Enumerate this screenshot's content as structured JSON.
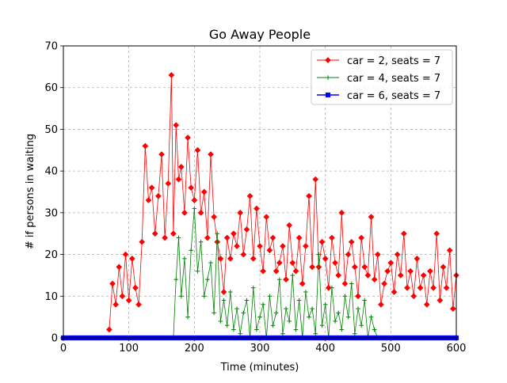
{
  "chart_data": {
    "type": "line",
    "title": "Go Away People",
    "xlabel": "Time (minutes)",
    "ylabel": "# if persons in waiting",
    "xlim": [
      0,
      600
    ],
    "ylim": [
      0,
      70
    ],
    "xticks": [
      0,
      100,
      200,
      300,
      400,
      500,
      600
    ],
    "yticks": [
      0,
      10,
      20,
      30,
      40,
      50,
      60,
      70
    ],
    "grid": true,
    "legend_position": "top-right",
    "series": [
      {
        "name": "car = 2, seats = 7",
        "color": "#ff0000",
        "marker": "diamond",
        "x": [
          70,
          75,
          80,
          85,
          90,
          95,
          100,
          105,
          110,
          115,
          120,
          125,
          130,
          135,
          140,
          145,
          150,
          155,
          160,
          165,
          168,
          172,
          176,
          180,
          185,
          190,
          195,
          200,
          205,
          210,
          215,
          220,
          225,
          230,
          235,
          240,
          245,
          250,
          255,
          260,
          265,
          270,
          275,
          280,
          285,
          290,
          295,
          300,
          305,
          310,
          315,
          320,
          325,
          330,
          335,
          340,
          345,
          350,
          355,
          360,
          365,
          370,
          375,
          380,
          385,
          390,
          395,
          400,
          405,
          410,
          415,
          420,
          425,
          430,
          435,
          440,
          445,
          450,
          455,
          460,
          465,
          470,
          475,
          480,
          485,
          490,
          495,
          500,
          505,
          510,
          515,
          520,
          525,
          530,
          535,
          540,
          545,
          550,
          555,
          560,
          565,
          570,
          575,
          580,
          585,
          590,
          595,
          600
        ],
        "values": [
          2,
          13,
          8,
          17,
          10,
          20,
          9,
          19,
          12,
          8,
          23,
          46,
          33,
          36,
          25,
          34,
          44,
          24,
          37,
          63,
          25,
          51,
          38,
          41,
          30,
          48,
          36,
          33,
          45,
          30,
          35,
          24,
          44,
          29,
          23,
          19,
          11,
          24,
          19,
          25,
          22,
          30,
          20,
          26,
          34,
          19,
          31,
          22,
          16,
          29,
          21,
          24,
          16,
          18,
          22,
          14,
          27,
          18,
          16,
          24,
          13,
          22,
          34,
          17,
          38,
          17,
          23,
          19,
          12,
          24,
          18,
          15,
          30,
          13,
          20,
          23,
          17,
          10,
          24,
          17,
          15,
          29,
          14,
          20,
          8,
          13,
          16,
          18,
          11,
          20,
          15,
          25,
          12,
          16,
          10,
          19,
          12,
          15,
          8,
          16,
          12,
          25,
          9,
          17,
          12,
          21,
          7,
          15
        ]
      },
      {
        "name": "car = 4, seats = 7",
        "color": "#008000",
        "marker": "plus",
        "x": [
          168,
          172,
          176,
          180,
          185,
          190,
          195,
          200,
          205,
          210,
          215,
          220,
          225,
          230,
          235,
          240,
          245,
          250,
          255,
          260,
          265,
          270,
          275,
          280,
          285,
          290,
          295,
          300,
          305,
          310,
          315,
          320,
          325,
          330,
          335,
          340,
          345,
          350,
          355,
          360,
          365,
          370,
          375,
          380,
          385,
          390,
          395,
          400,
          405,
          410,
          415,
          420,
          425,
          430,
          435,
          440,
          445,
          450,
          455,
          460,
          465,
          470,
          475,
          480
        ],
        "values": [
          0,
          14,
          24,
          10,
          19,
          5,
          21,
          31,
          16,
          23,
          10,
          14,
          18,
          6,
          25,
          4,
          9,
          3,
          11,
          2,
          7,
          1,
          6,
          9,
          0,
          12,
          2,
          5,
          8,
          0,
          10,
          3,
          6,
          14,
          1,
          7,
          4,
          15,
          2,
          9,
          0,
          11,
          5,
          7,
          1,
          20,
          3,
          8,
          0,
          12,
          4,
          6,
          2,
          10,
          5,
          13,
          1,
          7,
          3,
          9,
          0,
          5,
          2,
          0
        ]
      },
      {
        "name": "car = 6, seats = 7",
        "color": "#0000ff",
        "marker": "square",
        "x": [
          0,
          600
        ],
        "values": [
          0,
          0
        ]
      }
    ]
  }
}
